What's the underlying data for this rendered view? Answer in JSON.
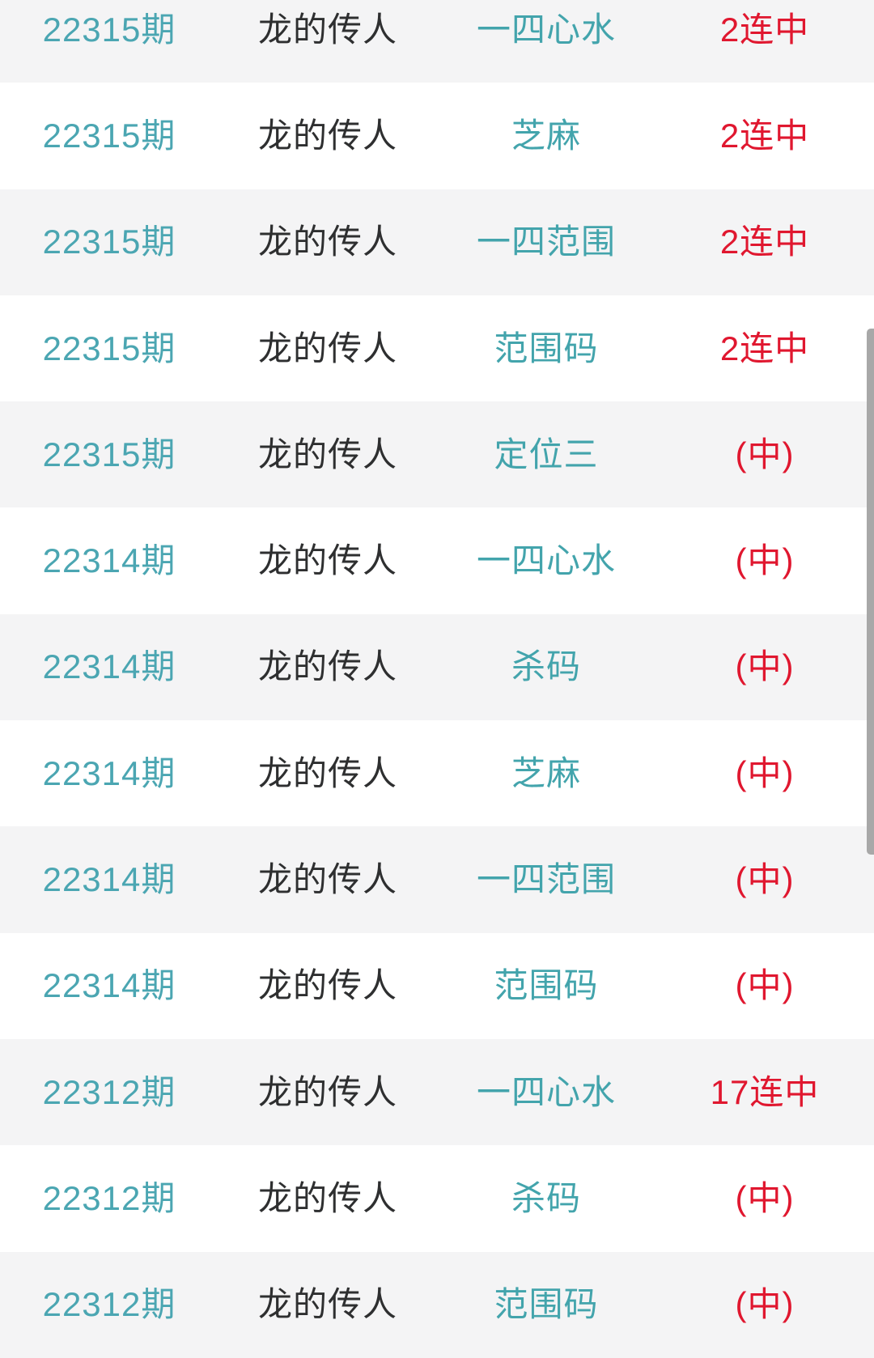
{
  "list": {
    "rows": [
      {
        "period": "22315期",
        "name": "龙的传人",
        "type": "一四心水",
        "result": "2连中"
      },
      {
        "period": "22315期",
        "name": "龙的传人",
        "type": "芝麻",
        "result": "2连中"
      },
      {
        "period": "22315期",
        "name": "龙的传人",
        "type": "一四范围",
        "result": "2连中"
      },
      {
        "period": "22315期",
        "name": "龙的传人",
        "type": "范围码",
        "result": "2连中"
      },
      {
        "period": "22315期",
        "name": "龙的传人",
        "type": "定位三",
        "result": "(中)"
      },
      {
        "period": "22314期",
        "name": "龙的传人",
        "type": "一四心水",
        "result": "(中)"
      },
      {
        "period": "22314期",
        "name": "龙的传人",
        "type": "杀码",
        "result": "(中)"
      },
      {
        "period": "22314期",
        "name": "龙的传人",
        "type": "芝麻",
        "result": "(中)"
      },
      {
        "period": "22314期",
        "name": "龙的传人",
        "type": "一四范围",
        "result": "(中)"
      },
      {
        "period": "22314期",
        "name": "龙的传人",
        "type": "范围码",
        "result": "(中)"
      },
      {
        "period": "22312期",
        "name": "龙的传人",
        "type": "一四心水",
        "result": "17连中"
      },
      {
        "period": "22312期",
        "name": "龙的传人",
        "type": "杀码",
        "result": "(中)"
      },
      {
        "period": "22312期",
        "name": "龙的传人",
        "type": "范围码",
        "result": "(中)"
      }
    ]
  },
  "colors": {
    "teal": "#4ba6b2",
    "teal2": "#43a4ac",
    "red": "#e0172f",
    "row_alt": "#f4f4f5",
    "scrollbar": "#a8a8a8"
  }
}
